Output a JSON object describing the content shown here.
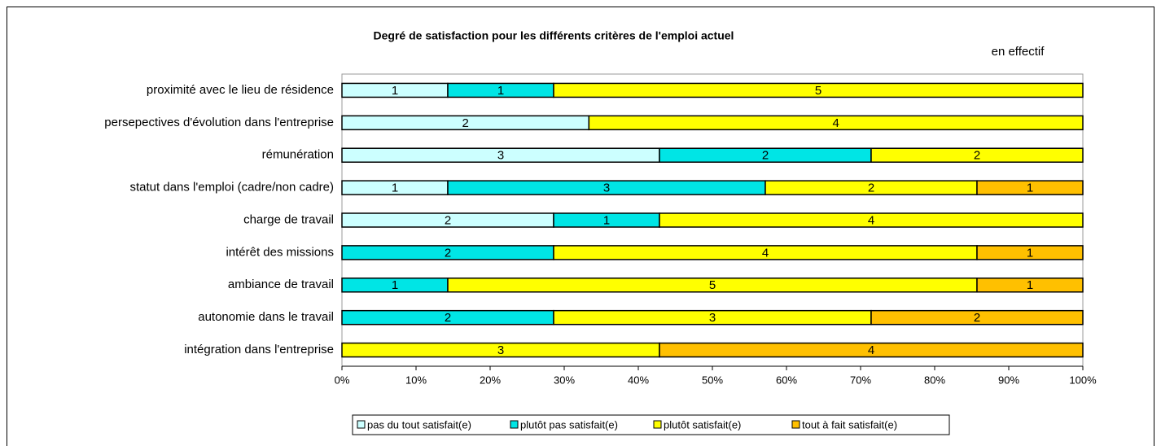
{
  "chart_data": {
    "type": "bar",
    "orientation": "horizontal",
    "stack": "percent",
    "title": "Degré de satisfaction pour les différents critères de l'emploi actuel",
    "subtitle": "en effectif",
    "categories": [
      "proximité avec le lieu de résidence",
      "persepectives d'évolution dans l'entreprise",
      "rémunération",
      "statut dans l'emploi (cadre/non cadre)",
      "charge de travail",
      "intérêt des missions",
      "ambiance de travail",
      "autonomie dans le travail",
      "intégration dans l'entreprise"
    ],
    "series": [
      {
        "name": "pas du tout satisfait(e)",
        "color": "#ccffff",
        "values": [
          1,
          2,
          3,
          1,
          2,
          0,
          0,
          0,
          0
        ]
      },
      {
        "name": "plutôt pas satisfait(e)",
        "color": "#00e5e5",
        "values": [
          1,
          0,
          2,
          3,
          1,
          2,
          1,
          2,
          0
        ]
      },
      {
        "name": "plutôt satisfait(e)",
        "color": "#ffff00",
        "values": [
          5,
          4,
          2,
          2,
          4,
          4,
          5,
          3,
          3
        ]
      },
      {
        "name": "tout à fait satisfait(e)",
        "color": "#ffc000",
        "values": [
          0,
          0,
          0,
          1,
          0,
          1,
          1,
          2,
          4
        ]
      }
    ],
    "xlim": [
      0,
      100
    ],
    "xticks": [
      {
        "value": 0,
        "label": "0%"
      },
      {
        "value": 10,
        "label": "10%"
      },
      {
        "value": 20,
        "label": "20%"
      },
      {
        "value": 30,
        "label": "30%"
      },
      {
        "value": 40,
        "label": "40%"
      },
      {
        "value": 50,
        "label": "50%"
      },
      {
        "value": 60,
        "label": "60%"
      },
      {
        "value": 70,
        "label": "70%"
      },
      {
        "value": 80,
        "label": "80%"
      },
      {
        "value": 90,
        "label": "90%"
      },
      {
        "value": 100,
        "label": "100%"
      }
    ],
    "legend": "bottom"
  }
}
